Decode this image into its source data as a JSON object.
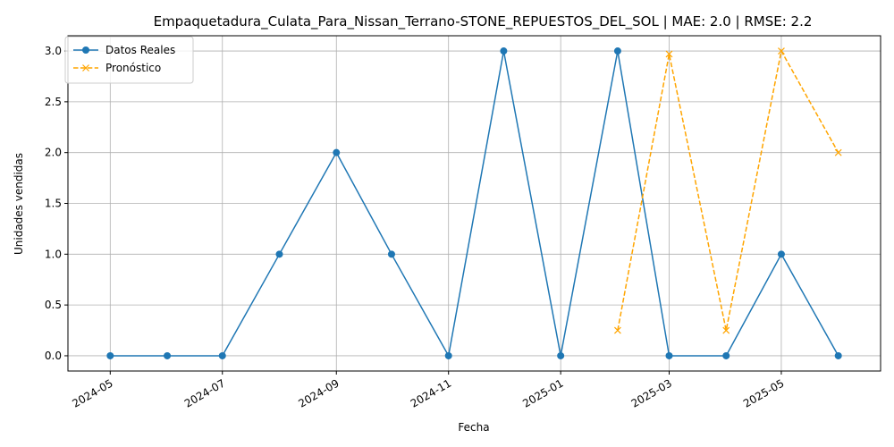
{
  "chart_data": {
    "type": "line",
    "title": "Empaquetadura_Culata_Para_Nissan_Terrano-STONE_REPUESTOS_DEL_SOL | MAE: 2.0 | RMSE: 2.2",
    "xlabel": "Fecha",
    "ylabel": "Unidades vendidas",
    "ylim": [
      -0.15,
      3.15
    ],
    "xlim": [
      "2024-04-08",
      "2025-06-24"
    ],
    "grid": true,
    "legend_position": "top-left",
    "x_ticks": [
      "2024-05-01",
      "2024-07-01",
      "2024-09-01",
      "2024-11-01",
      "2025-01-01",
      "2025-03-01",
      "2025-05-01"
    ],
    "x_tick_labels": [
      "2024-05",
      "2024-07",
      "2024-09",
      "2024-11",
      "2025-01",
      "2025-03",
      "2025-05"
    ],
    "y_ticks": [
      0.0,
      0.5,
      1.0,
      1.5,
      2.0,
      2.5,
      3.0
    ],
    "y_tick_labels": [
      "0.0",
      "0.5",
      "1.0",
      "1.5",
      "2.0",
      "2.5",
      "3.0"
    ],
    "series": [
      {
        "name": "Datos Reales",
        "color": "#1f77b4",
        "marker": "circle",
        "linestyle": "solid",
        "x": [
          "2024-05-01",
          "2024-06-01",
          "2024-07-01",
          "2024-08-01",
          "2024-09-01",
          "2024-10-01",
          "2024-11-01",
          "2024-12-01",
          "2025-01-01",
          "2025-02-01",
          "2025-03-01",
          "2025-04-01",
          "2025-05-01",
          "2025-06-01"
        ],
        "y": [
          0,
          0,
          0,
          1,
          2,
          1,
          0,
          3,
          0,
          3,
          0,
          0,
          1,
          0
        ]
      },
      {
        "name": "Pronóstico",
        "color": "#ffa500",
        "marker": "x",
        "linestyle": "dashed",
        "x": [
          "2025-02-01",
          "2025-03-01",
          "2025-04-01",
          "2025-05-01",
          "2025-06-01"
        ],
        "y": [
          0.25,
          2.97,
          0.25,
          3.0,
          2.0
        ]
      }
    ]
  }
}
